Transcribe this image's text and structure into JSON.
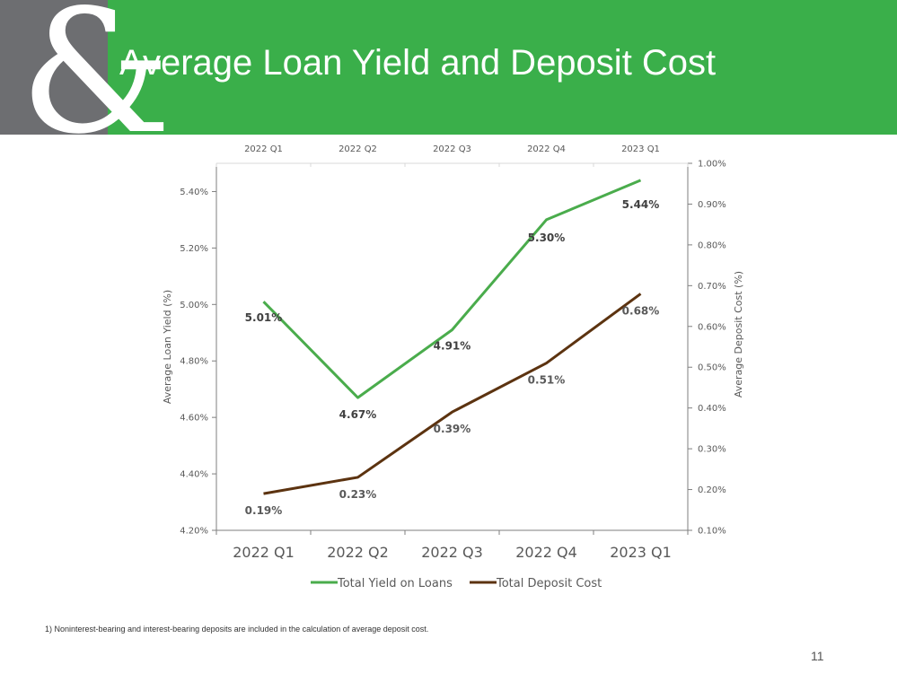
{
  "slide": {
    "title": "Average Loan Yield and Deposit Cost",
    "footnote": "1)     Noninterest-bearing and interest-bearing deposits are included in the calculation of average deposit cost.",
    "page_number": "11",
    "brand_color": "#3aaf4a",
    "logo_color": "#6d6e71"
  },
  "chart_data": {
    "type": "line",
    "categories": [
      "2022 Q1",
      "2022 Q2",
      "2022 Q3",
      "2022 Q4",
      "2023 Q1"
    ],
    "series": [
      {
        "name": "Total Yield on Loans",
        "axis": "left",
        "values": [
          5.01,
          4.67,
          4.91,
          5.3,
          5.44
        ],
        "labels": [
          "5.01%",
          "4.67%",
          "4.91%",
          "5.30%",
          "5.44%"
        ],
        "color": "#4aac4c"
      },
      {
        "name": "Total Deposit Cost",
        "axis": "right",
        "values": [
          0.19,
          0.23,
          0.39,
          0.51,
          0.68
        ],
        "labels": [
          "0.19%",
          "0.23%",
          "0.39%",
          "0.51%",
          "0.68%"
        ],
        "color": "#5c3310"
      }
    ],
    "y_left": {
      "label": "Average Loan Yield (%)",
      "range": [
        4.2,
        5.5
      ],
      "ticks": [
        4.2,
        4.4,
        4.6,
        4.8,
        5.0,
        5.2,
        5.4
      ],
      "tick_labels": [
        "4.20%",
        "4.40%",
        "4.60%",
        "4.80%",
        "5.00%",
        "5.20%",
        "5.40%"
      ]
    },
    "y_right": {
      "label": "Average Deposit Cost (%)",
      "range": [
        0.1,
        1.0
      ],
      "ticks": [
        0.1,
        0.2,
        0.3,
        0.4,
        0.5,
        0.6,
        0.7,
        0.8,
        0.9,
        1.0
      ],
      "tick_labels": [
        "0.10%",
        "0.20%",
        "0.30%",
        "0.40%",
        "0.50%",
        "0.60%",
        "0.70%",
        "0.80%",
        "0.90%",
        "1.00%"
      ]
    },
    "x_top_labels": [
      "2022 Q1",
      "2022 Q2",
      "2022 Q3",
      "2022 Q4",
      "2023 Q1"
    ],
    "grid": false,
    "legend": "bottom"
  }
}
